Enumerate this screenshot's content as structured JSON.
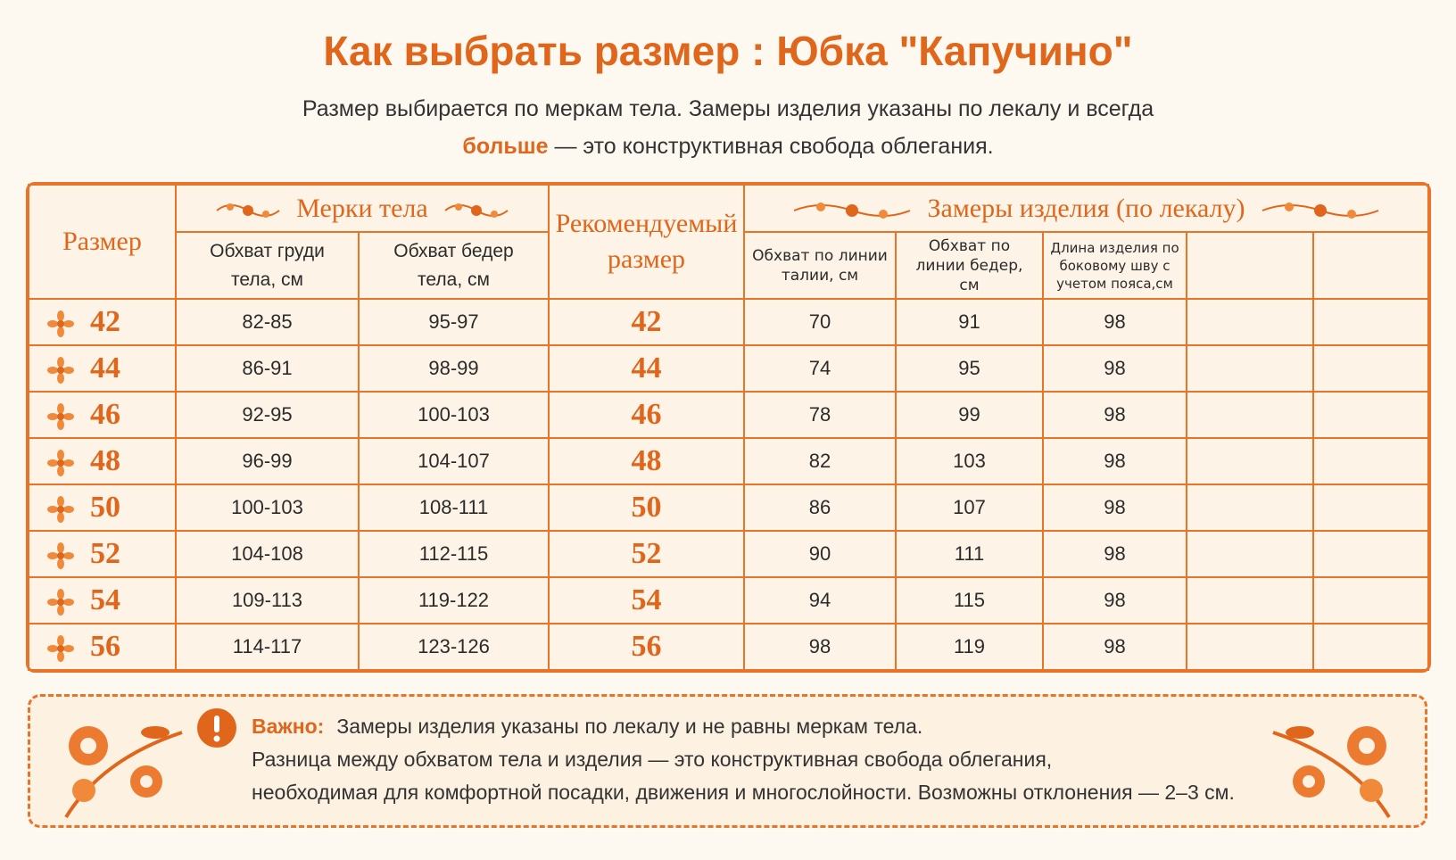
{
  "header": {
    "title": "Как выбрать размер :  Юбка \"Капучино\"",
    "subtitle_line1": "Размер выбирается по меркам тела. Замеры изделия указаны по лекалу и всегда",
    "subtitle_bold": "больше",
    "subtitle_rest": " — это конструктивная свобода облегания."
  },
  "table": {
    "head": {
      "size": "Размер",
      "body_measures": "Мерки тела",
      "recommended": "Рекомендуемый размер",
      "product_measures": "Замеры изделия (по лекалу)",
      "chest": "Обхват груди тела, см",
      "hips": "Обхват бедер тела, см",
      "waist_product": "Обхват по линии талии, см",
      "hips_product": "Обхват по линии бедер, см",
      "length_product": "Длина изделия по боковому шву с учетом пояса,см"
    },
    "rows": [
      [
        "42",
        "82-85",
        "95-97",
        "42",
        "70",
        "91",
        "98"
      ],
      [
        "44",
        "86-91",
        "98-99",
        "44",
        "74",
        "95",
        "98"
      ],
      [
        "46",
        "92-95",
        "100-103",
        "46",
        "78",
        "99",
        "98"
      ],
      [
        "48",
        "96-99",
        "104-107",
        "48",
        "82",
        "103",
        "98"
      ],
      [
        "50",
        "100-103",
        "108-111",
        "50",
        "86",
        "107",
        "98"
      ],
      [
        "52",
        "104-108",
        "112-115",
        "52",
        "90",
        "111",
        "98"
      ],
      [
        "54",
        "109-113",
        "119-122",
        "54",
        "94",
        "115",
        "98"
      ],
      [
        "56",
        "114-117",
        "123-126",
        "56",
        "98",
        "119",
        "98"
      ]
    ]
  },
  "note": {
    "label": "Важно:",
    "line1": "Замеры изделия указаны по лекалу и не равны меркам тела.",
    "line2": "Разница между обхватом тела и изделия — это конструктивная свобода облегания,",
    "line3": "необходимая для комфортной посадки, движения и многослойности. Возможны отклонения — 2–3 см."
  }
}
